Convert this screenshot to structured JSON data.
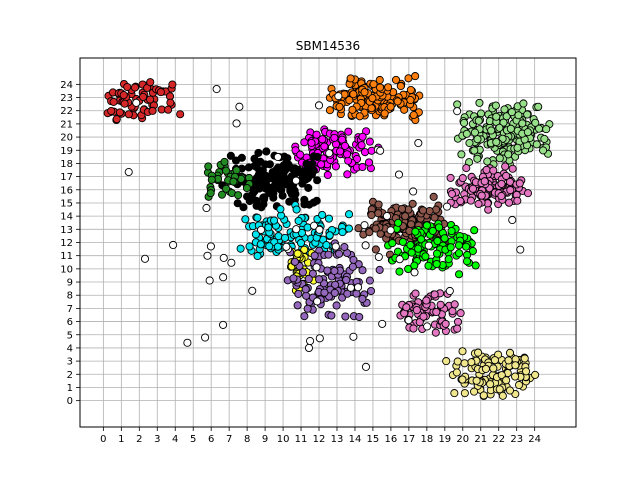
{
  "chart_data": {
    "type": "scatter",
    "title": "SBM14536",
    "xlabel": "",
    "ylabel": "",
    "xlim": [
      -1.3,
      26.3
    ],
    "ylim": [
      -2.0,
      26.0
    ],
    "x_ticks": [
      "0",
      "1",
      "2",
      "3",
      "4",
      "5",
      "6",
      "7",
      "8",
      "9",
      "10",
      "11",
      "12",
      "13",
      "14",
      "15",
      "16",
      "17",
      "18",
      "19",
      "20",
      "21",
      "22",
      "23",
      "24"
    ],
    "y_ticks": [
      "0",
      "1",
      "2",
      "3",
      "4",
      "5",
      "6",
      "7",
      "8",
      "9",
      "10",
      "11",
      "12",
      "13",
      "14",
      "15",
      "16",
      "17",
      "18",
      "19",
      "20",
      "21",
      "22",
      "23",
      "24"
    ],
    "grid": true,
    "legend": "none",
    "clusters": [
      {
        "color": "#d62728",
        "region_x": [
          0.0,
          4.5
        ],
        "region_y": [
          21.0,
          24.6
        ],
        "count": 70
      },
      {
        "color": "#ff7f0e",
        "region_x": [
          12.0,
          18.0
        ],
        "region_y": [
          21.2,
          24.8
        ],
        "count": 170
      },
      {
        "color": "#98df8a",
        "region_x": [
          19.5,
          25.0
        ],
        "region_y": [
          17.5,
          22.8
        ],
        "count": 200
      },
      {
        "color": "#ff00ff",
        "region_x": [
          10.0,
          15.5
        ],
        "region_y": [
          17.0,
          21.0
        ],
        "count": 110
      },
      {
        "color": "#000000",
        "region_x": [
          6.5,
          12.5
        ],
        "region_y": [
          14.5,
          19.0
        ],
        "count": 160
      },
      {
        "color": "#228b22",
        "region_x": [
          5.5,
          8.5
        ],
        "region_y": [
          15.2,
          18.5
        ],
        "count": 40
      },
      {
        "color": "#e377c2",
        "region_x": [
          19.0,
          24.0
        ],
        "region_y": [
          14.0,
          18.0
        ],
        "count": 120
      },
      {
        "color": "#00e5ee",
        "region_x": [
          7.0,
          14.5
        ],
        "region_y": [
          10.5,
          15.0
        ],
        "count": 120
      },
      {
        "color": "#8c564b",
        "region_x": [
          14.0,
          19.5
        ],
        "region_y": [
          11.0,
          15.5
        ],
        "count": 150
      },
      {
        "color": "#00ff00",
        "region_x": [
          15.5,
          21.0
        ],
        "region_y": [
          9.5,
          13.8
        ],
        "count": 110
      },
      {
        "color": "#ffff33",
        "region_x": [
          10.0,
          11.8
        ],
        "region_y": [
          8.0,
          12.0
        ],
        "count": 35
      },
      {
        "color": "#9467bd",
        "region_x": [
          10.0,
          15.5
        ],
        "region_y": [
          6.0,
          12.0
        ],
        "count": 110
      },
      {
        "color": "#e377c2",
        "region_x": [
          16.0,
          20.0
        ],
        "region_y": [
          5.0,
          8.5
        ],
        "count": 80
      },
      {
        "color": "#f0e68c",
        "region_x": [
          19.0,
          24.5
        ],
        "region_y": [
          0.0,
          4.0
        ],
        "count": 120
      },
      {
        "color": "#ffffff",
        "region_x": [
          0.0,
          25.0
        ],
        "region_y": [
          0.0,
          25.0
        ],
        "count": 60
      }
    ]
  }
}
